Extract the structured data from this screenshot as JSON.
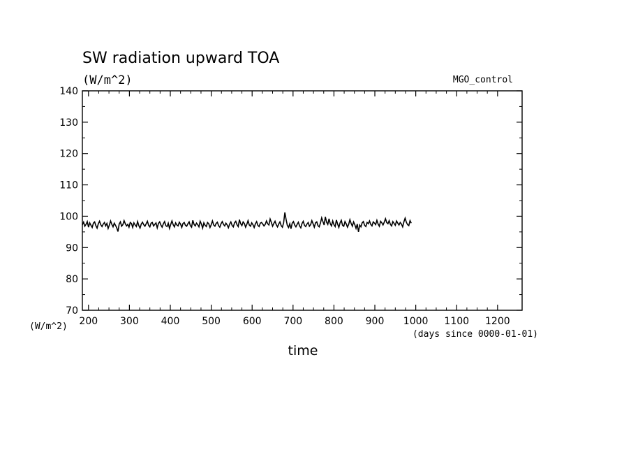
{
  "chart_data": {
    "type": "line",
    "title": "SW radiation upward TOA",
    "units": "(W/m^2)",
    "yunits_label": "(W/m^2)",
    "xlabel": "time",
    "xunits": "(days since 0000-01-01)",
    "annotation": "MGO_control",
    "xlim": [
      185,
      1260
    ],
    "ylim": [
      70,
      140
    ],
    "xticks": [
      200,
      300,
      400,
      500,
      600,
      700,
      800,
      900,
      1000,
      1100,
      1200
    ],
    "yticks": [
      70,
      80,
      90,
      100,
      110,
      120,
      130,
      140
    ],
    "grid": false,
    "series": [
      {
        "start": 185,
        "step": 3,
        "values": [
          97.2,
          98.1,
          96.8,
          97.4,
          98.3,
          96.5,
          97.9,
          97.1,
          96.4,
          97.8,
          98.2,
          97.0,
          96.2,
          97.6,
          98.4,
          97.3,
          96.7,
          97.5,
          98.0,
          96.9,
          97.7,
          96.1,
          97.2,
          98.5,
          97.4,
          96.6,
          97.8,
          97.1,
          96.3,
          95.1,
          97.5,
          98.2,
          96.8,
          97.3,
          98.6,
          97.6,
          96.9,
          97.4,
          96.5,
          98.0,
          97.7,
          96.4,
          97.9,
          97.2,
          96.7,
          98.3,
          97.0,
          96.2,
          97.5,
          98.1,
          97.3,
          96.8,
          97.6,
          98.4,
          97.1,
          96.6,
          97.8,
          98.0,
          96.9,
          97.4,
          97.9,
          96.3,
          97.7,
          98.2,
          97.2,
          96.5,
          97.6,
          98.3,
          97.0,
          96.7,
          97.8,
          96.1,
          97.4,
          98.5,
          97.3,
          96.6,
          97.9,
          97.2,
          96.9,
          98.1,
          97.5,
          96.4,
          97.7,
          98.0,
          97.1,
          96.8,
          97.6,
          98.2,
          97.0,
          96.5,
          98.7,
          97.4,
          96.9,
          97.8,
          97.3,
          96.6,
          98.4,
          97.5,
          96.2,
          97.9,
          97.1,
          96.7,
          98.0,
          97.6,
          96.4,
          97.3,
          98.5,
          97.2,
          96.8,
          97.7,
          98.1,
          97.0,
          96.5,
          97.6,
          98.3,
          97.4,
          96.9,
          97.8,
          97.2,
          96.3,
          97.5,
          98.2,
          97.1,
          96.6,
          97.9,
          98.4,
          97.3,
          96.7,
          98.9,
          97.6,
          97.0,
          98.2,
          97.7,
          96.5,
          97.4,
          98.6,
          97.2,
          96.8,
          97.9,
          97.3,
          96.4,
          97.6,
          98.3,
          97.1,
          96.7,
          97.8,
          98.0,
          97.5,
          96.9,
          97.4,
          98.5,
          97.6,
          97.2,
          99.1,
          98.0,
          96.8,
          97.7,
          98.4,
          97.3,
          96.6,
          97.5,
          98.2,
          97.0,
          96.5,
          97.9,
          101.2,
          99.0,
          97.1,
          96.4,
          97.6,
          96.0,
          97.8,
          98.3,
          97.2,
          96.6,
          97.4,
          98.1,
          96.9,
          96.3,
          97.7,
          98.4,
          97.1,
          96.7,
          97.5,
          98.0,
          96.8,
          97.3,
          98.6,
          97.6,
          96.5,
          97.9,
          98.2,
          97.0,
          96.6,
          97.8,
          99.5,
          98.3,
          97.2,
          99.8,
          98.1,
          97.4,
          99.2,
          97.6,
          96.9,
          98.5,
          97.3,
          96.7,
          98.8,
          97.5,
          96.4,
          97.9,
          98.7,
          97.1,
          96.8,
          98.3,
          97.6,
          96.5,
          97.4,
          98.9,
          97.7,
          96.8,
          98.2,
          97.3,
          96.1,
          97.5,
          95.0,
          97.2,
          96.6,
          97.9,
          98.3,
          97.1,
          96.7,
          98.0,
          97.6,
          98.5,
          97.4,
          96.9,
          98.2,
          97.8,
          97.3,
          98.7,
          97.5,
          96.8,
          98.4,
          97.9,
          97.2,
          98.1,
          99.2,
          98.0,
          97.6,
          98.6,
          97.4,
          96.9,
          98.3,
          97.7,
          97.1,
          98.5,
          97.8,
          97.2,
          98.0,
          97.5,
          96.6,
          98.2,
          99.4,
          98.1,
          97.3,
          97.0,
          98.6,
          97.8
        ]
      }
    ]
  }
}
